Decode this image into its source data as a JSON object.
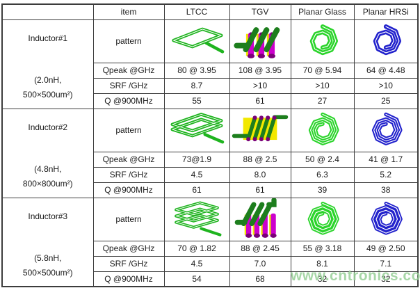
{
  "header": {
    "item_label": "item",
    "columns": [
      "LTCC",
      "TGV",
      "Planar Glass",
      "Planar HRSi"
    ]
  },
  "row_labels": {
    "pattern": "pattern",
    "qpeak": "Qpeak @GHz",
    "srf": "SRF /GHz",
    "q900": "Q @900MHz"
  },
  "sections": [
    {
      "name": "Inductor#1",
      "inductance": "(2.0nH,",
      "size": "500×500um²)",
      "qpeak": [
        "80 @ 3.95",
        "108 @ 3.95",
        "70 @ 5.94",
        "64 @ 4.48"
      ],
      "srf": [
        "8.7",
        ">10",
        ">10",
        ">10"
      ],
      "q900": [
        "55",
        "61",
        "27",
        "25"
      ]
    },
    {
      "name": "Inductor#2",
      "inductance": "(4.8nH,",
      "size": "800×800um²)",
      "qpeak": [
        "73@1.9",
        "88 @ 2.5",
        "50 @ 2.4",
        "41 @ 1.7"
      ],
      "srf": [
        "4.5",
        "8.0",
        "6.3",
        "5.2"
      ],
      "q900": [
        "61",
        "61",
        "39",
        "38"
      ]
    },
    {
      "name": "Inductor#3",
      "inductance": "(5.8nH,",
      "size": "500×500um²)",
      "qpeak": [
        "70 @ 1.82",
        "88 @ 2.45",
        "55 @ 3.18",
        "49 @ 2.50"
      ],
      "srf": [
        "4.5",
        "7.0",
        "8.1",
        "7.1"
      ],
      "q900": [
        "54",
        "68",
        "32",
        "32"
      ]
    }
  ],
  "watermark": "www.cntronics.com",
  "colors": {
    "ltcc_green": "#1fb41f",
    "tgv_dark_green": "#1d7e1d",
    "tgv_magenta": "#cc00cc",
    "tgv_yellow": "#f2e800",
    "via_purple": "#7a0078",
    "glass_green": "#2bd42b",
    "hrsi_blue": "#2222cc",
    "watermark": "#98d098",
    "border": "#3c3c3c"
  }
}
